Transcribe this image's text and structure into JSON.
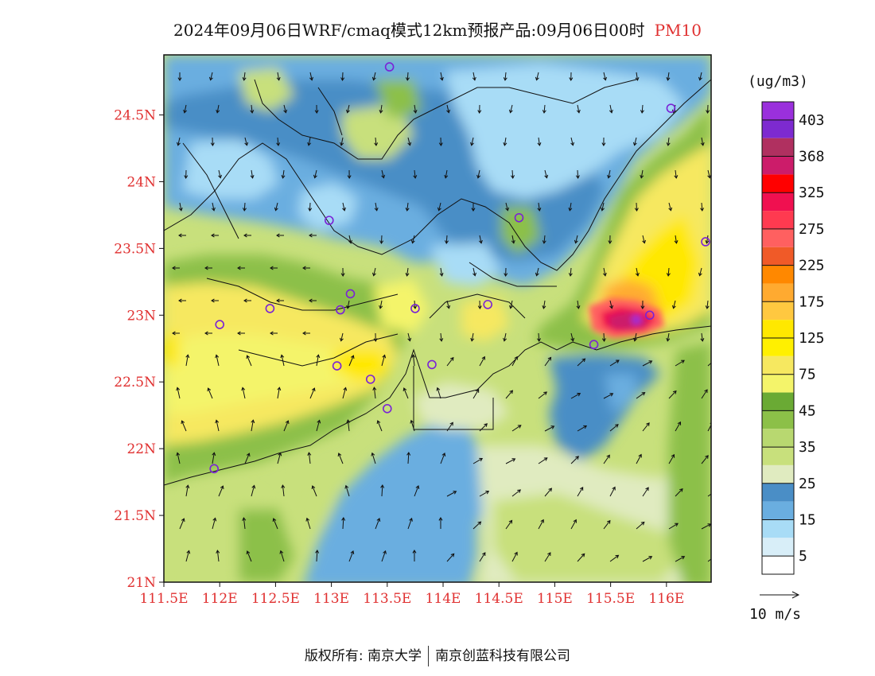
{
  "title": {
    "main": "2024年09月06日WRF/cmaq模式12km预报产品:09月06日00时",
    "product": "PM10"
  },
  "footer": {
    "left": "版权所有: 南京大学",
    "right": "南京创蓝科技有限公司"
  },
  "map": {
    "lat_ticks": [
      "24.5N",
      "24N",
      "23.5N",
      "23N",
      "22.5N",
      "22N",
      "21.5N",
      "21N"
    ],
    "lon_ticks": [
      "111.5E",
      "112E",
      "112.5E",
      "113E",
      "113.5E",
      "114E",
      "114.5E",
      "115E",
      "115.5E",
      "116E"
    ],
    "lon_range": [
      111.5,
      116.4
    ],
    "lat_range": [
      21.0,
      24.95
    ]
  },
  "legend": {
    "unit": "(ug/m3)",
    "labels": [
      "403",
      "368",
      "325",
      "275",
      "225",
      "175",
      "125",
      "75",
      "45",
      "35",
      "25",
      "15",
      "5"
    ],
    "colors": [
      "#9a30dc",
      "#7d2ad0",
      "#b03060",
      "#cc1c6a",
      "#ff0000",
      "#f01050",
      "#ff3a50",
      "#ff6060",
      "#f05a28",
      "#ff8800",
      "#ffaa30",
      "#ffc840",
      "#ffe800",
      "#fff000",
      "#f6e860",
      "#f4f46a",
      "#6aaa34",
      "#8cc048",
      "#b8d870",
      "#c8e07c",
      "#e0ebc0",
      "#4a8ec6",
      "#6aaee0",
      "#a8dcf6",
      "#d8eef8",
      "#ffffff"
    ],
    "wind_ref": "10 m/s"
  },
  "stations": [
    [
      113.52,
      24.86
    ],
    [
      116.04,
      24.55
    ],
    [
      112.98,
      23.71
    ],
    [
      114.68,
      23.73
    ],
    [
      116.35,
      23.55
    ],
    [
      112.45,
      23.05
    ],
    [
      113.08,
      23.04
    ],
    [
      113.17,
      23.16
    ],
    [
      113.75,
      23.05
    ],
    [
      114.4,
      23.08
    ],
    [
      112.0,
      22.93
    ],
    [
      115.85,
      23.0
    ],
    [
      115.35,
      22.78
    ],
    [
      113.05,
      22.62
    ],
    [
      113.9,
      22.63
    ],
    [
      113.35,
      22.52
    ],
    [
      113.5,
      22.3
    ],
    [
      111.95,
      21.85
    ]
  ]
}
